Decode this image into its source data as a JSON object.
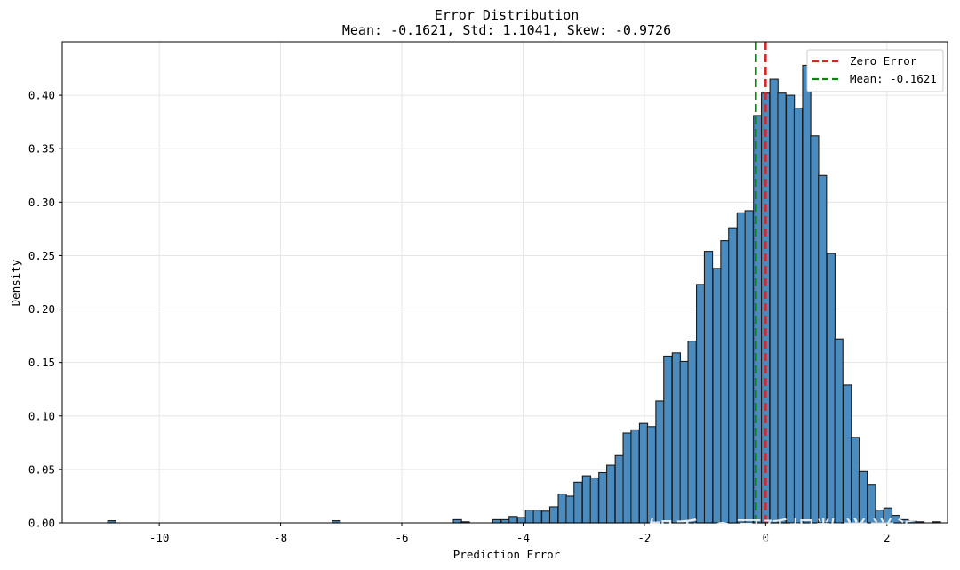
{
  "chart_data": {
    "type": "bar",
    "title": "Error Distribution",
    "subtitle": "Mean: -0.1621, Std: 1.1041, Skew: -0.9726",
    "xlabel": "Prediction Error",
    "ylabel": "Density",
    "xlim": [
      -11.6,
      3.0
    ],
    "ylim": [
      0,
      0.45
    ],
    "xticks": [
      "-10",
      "-8",
      "-6",
      "-4",
      "-2",
      "0",
      "2"
    ],
    "xtick_values": [
      -10,
      -8,
      -6,
      -4,
      -2,
      0,
      2
    ],
    "yticks": [
      "0.00",
      "0.05",
      "0.10",
      "0.15",
      "0.20",
      "0.25",
      "0.30",
      "0.35",
      "0.40"
    ],
    "ytick_values": [
      0,
      0.05,
      0.1,
      0.15,
      0.2,
      0.25,
      0.3,
      0.35,
      0.4
    ],
    "grid": true,
    "bin_width": 0.1341,
    "bins_start": [
      -10.85,
      -7.15,
      -5.15,
      -5.02,
      -4.5,
      -4.36,
      -4.23,
      -4.09,
      -3.96,
      -3.83,
      -3.69,
      -3.56,
      -3.42,
      -3.29,
      -3.16,
      -3.02,
      -2.89,
      -2.75,
      -2.62,
      -2.48,
      -2.35,
      -2.22,
      -2.08,
      -1.95,
      -1.81,
      -1.68,
      -1.54,
      -1.41,
      -1.28,
      -1.14,
      -1.01,
      -0.87,
      -0.74,
      -0.61,
      -0.47,
      -0.34,
      -0.2,
      -0.07,
      0.07,
      0.2,
      0.34,
      0.47,
      0.61,
      0.74,
      0.87,
      1.01,
      1.14,
      1.28,
      1.41,
      1.54,
      1.68,
      1.81,
      1.95,
      2.08,
      2.22,
      2.35,
      2.48,
      2.75
    ],
    "values": [
      0.002,
      0.002,
      0.003,
      0.001,
      0.003,
      0.003,
      0.006,
      0.005,
      0.012,
      0.012,
      0.011,
      0.015,
      0.027,
      0.025,
      0.038,
      0.044,
      0.042,
      0.047,
      0.054,
      0.063,
      0.084,
      0.087,
      0.093,
      0.09,
      0.114,
      0.156,
      0.159,
      0.151,
      0.17,
      0.223,
      0.254,
      0.238,
      0.264,
      0.276,
      0.29,
      0.292,
      0.381,
      0.402,
      0.415,
      0.402,
      0.4,
      0.388,
      0.428,
      0.362,
      0.325,
      0.252,
      0.172,
      0.129,
      0.08,
      0.048,
      0.036,
      0.012,
      0.014,
      0.007,
      0.003,
      0.002,
      0.001,
      0.001
    ],
    "bar_color": "#4b8bbe",
    "bar_edge_color": "#1a1a1a",
    "vlines": [
      {
        "label": "Zero Error",
        "x": 0.0,
        "color": "#d62728",
        "style": "dashed"
      },
      {
        "label": "Mean: -0.1621",
        "x": -0.1621,
        "color": "#128012",
        "style": "dashed"
      }
    ],
    "legend_position": "top-right"
  },
  "watermark": "知乎 @哥廷根数学学派"
}
